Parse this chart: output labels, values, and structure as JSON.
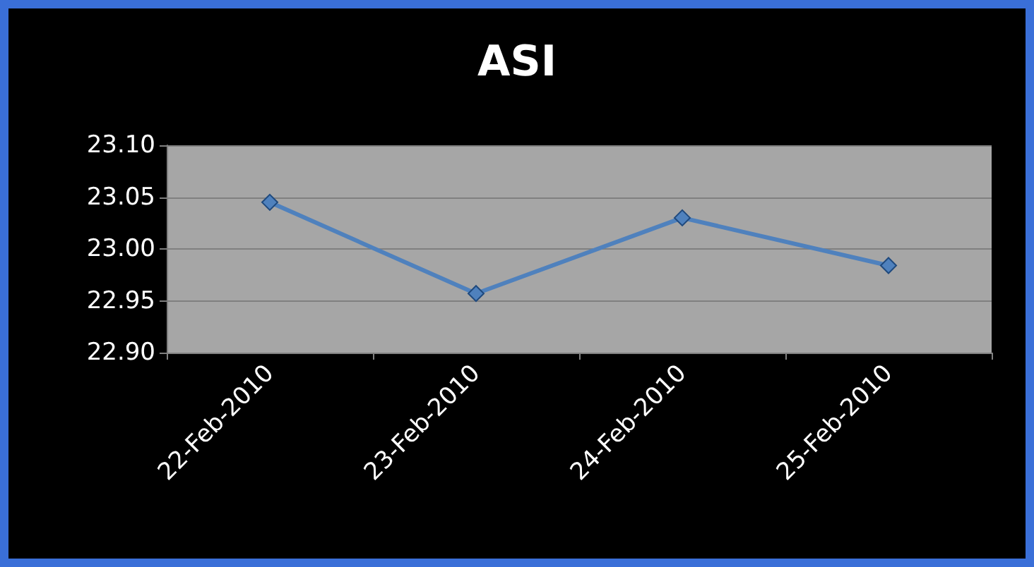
{
  "chart_data": {
    "type": "line",
    "title": "ASI",
    "categories": [
      "22-Feb-2010",
      "23-Feb-2010",
      "24-Feb-2010",
      "25-Feb-2010"
    ],
    "series": [
      {
        "color": "#4f81bd",
        "values": [
          23.045,
          22.957,
          23.03,
          22.984
        ]
      }
    ],
    "ylim": [
      22.9,
      23.1
    ],
    "yticks": [
      {
        "value": 22.9,
        "label": "22.90"
      },
      {
        "value": 22.95,
        "label": "22.95"
      },
      {
        "value": 23.0,
        "label": "23.00"
      },
      {
        "value": 23.05,
        "label": "23.05"
      },
      {
        "value": 23.1,
        "label": "23.10"
      }
    ],
    "grid": "y",
    "marker": "diamond"
  }
}
